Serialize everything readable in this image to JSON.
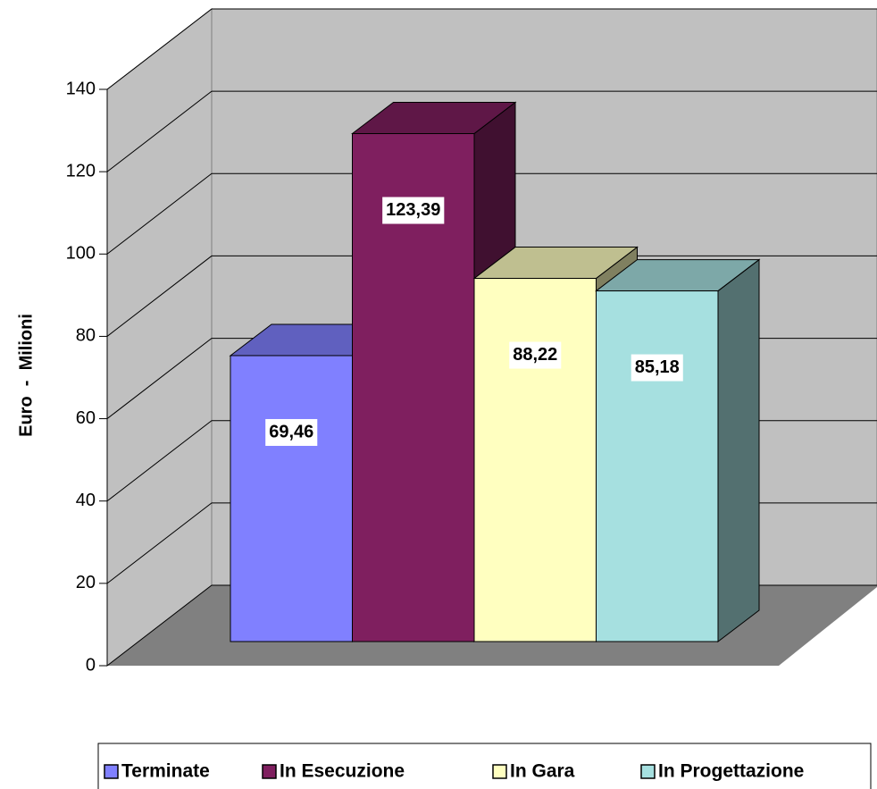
{
  "chart_data": {
    "type": "bar",
    "y_label": "Euro  -  Milioni",
    "categories": [
      null
    ],
    "series": [
      {
        "name": "Terminate",
        "color": "#8080ff",
        "values": [
          69.46
        ],
        "value_labels": [
          "69,46"
        ]
      },
      {
        "name": "In Esecuzione",
        "color": "#7f1f5f",
        "values": [
          123.39
        ],
        "value_labels": [
          "123,39"
        ]
      },
      {
        "name": "In Gara",
        "color": "#ffffc0",
        "values": [
          88.22
        ],
        "value_labels": [
          "88,22"
        ]
      },
      {
        "name": "In Progettazione",
        "color": "#a6e0e0",
        "values": [
          85.18
        ],
        "value_labels": [
          "85,18"
        ]
      }
    ],
    "ylim": [
      0,
      140
    ],
    "yticks": [
      0,
      20,
      40,
      60,
      80,
      100,
      120,
      140
    ],
    "grid": true,
    "legend": "bottom"
  }
}
